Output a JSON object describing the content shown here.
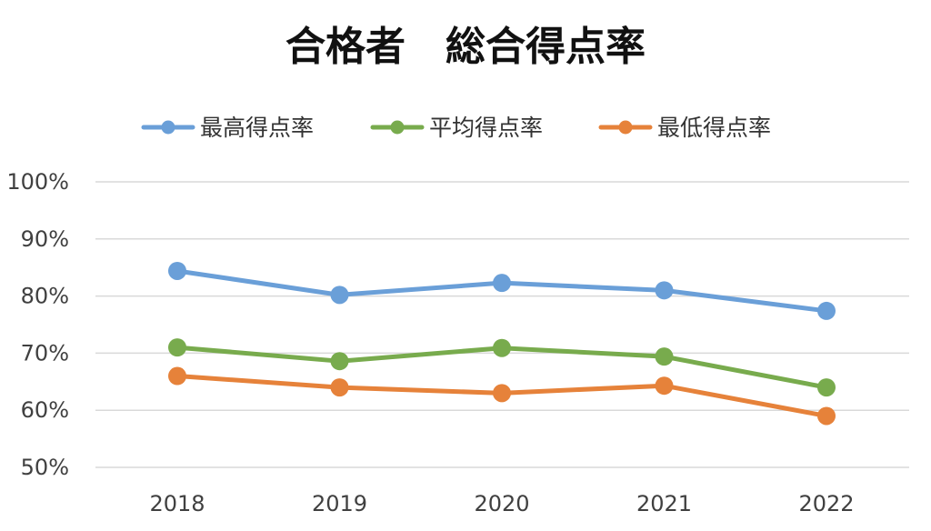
{
  "chart_data": {
    "type": "line",
    "title": "合格者　総合得点率",
    "categories": [
      "2018",
      "2019",
      "2020",
      "2021",
      "2022"
    ],
    "y_tick_labels": [
      "50%",
      "60%",
      "70%",
      "80%",
      "90%",
      "100%"
    ],
    "ylim": [
      50,
      100
    ],
    "y_unit": "%",
    "grid": true,
    "legend_position": "top",
    "series": [
      {
        "name": "最高得点率",
        "color": "#6a9fd8",
        "values": [
          84.4,
          80.2,
          82.3,
          81.0,
          77.4
        ]
      },
      {
        "name": "平均得点率",
        "color": "#78ab4d",
        "values": [
          71.0,
          68.6,
          70.9,
          69.4,
          64.0
        ]
      },
      {
        "name": "最低得点率",
        "color": "#e6823a",
        "values": [
          66.0,
          64.0,
          63.0,
          64.3,
          59.0
        ]
      }
    ]
  }
}
